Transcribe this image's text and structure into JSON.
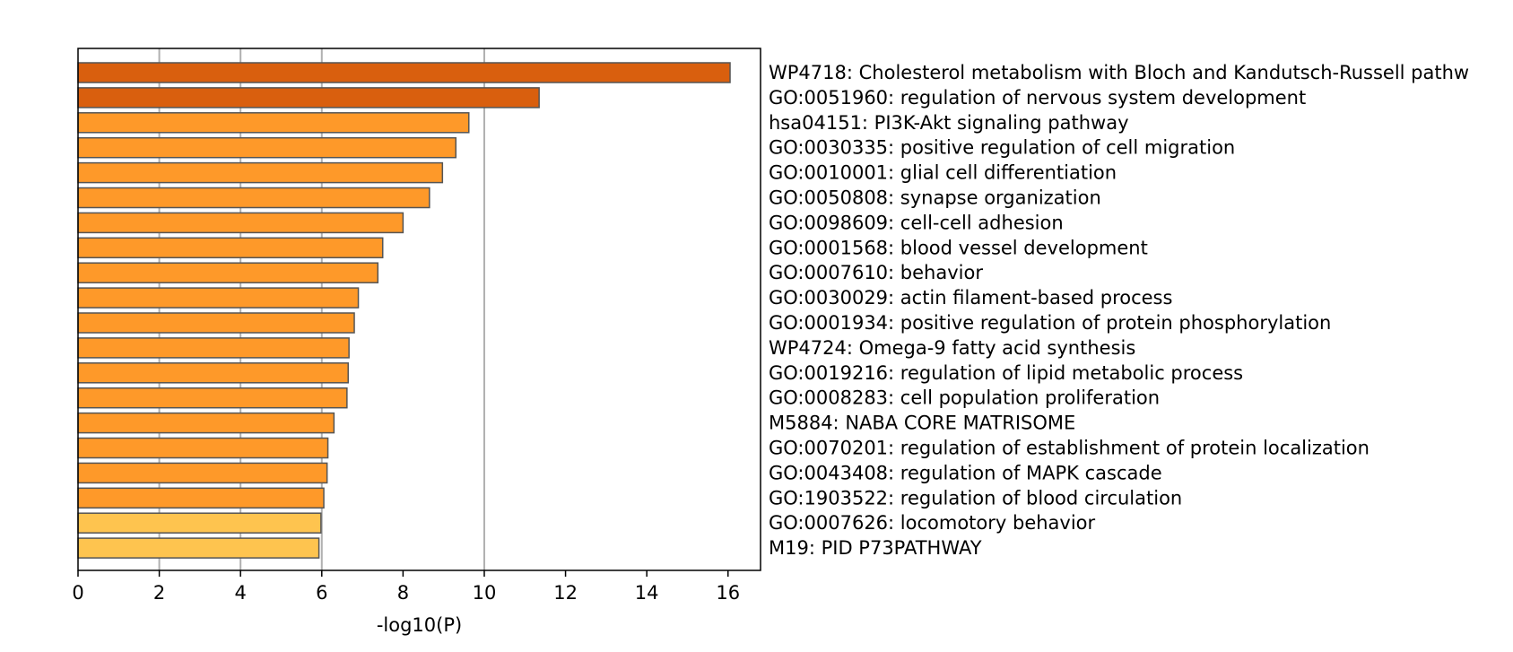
{
  "chart_data": {
    "type": "bar",
    "orientation": "horizontal",
    "xlabel": "-log10(P)",
    "xlim": [
      0,
      16.8
    ],
    "xticks": [
      0,
      2,
      4,
      6,
      8,
      10,
      12,
      14,
      16
    ],
    "vertical_gridlines_at": [
      2,
      4,
      6,
      10
    ],
    "categories": [
      "WP4718: Cholesterol metabolism with Bloch and Kandutsch-Russell pathw",
      "GO:0051960: regulation of nervous system development",
      "hsa04151: PI3K-Akt signaling pathway",
      "GO:0030335: positive regulation of cell migration",
      "GO:0010001: glial cell differentiation",
      "GO:0050808: synapse organization",
      "GO:0098609: cell-cell adhesion",
      "GO:0001568: blood vessel development",
      "GO:0007610: behavior",
      "GO:0030029: actin filament-based process",
      "GO:0001934: positive regulation of protein phosphorylation",
      "WP4724: Omega-9 fatty acid synthesis",
      "GO:0019216: regulation of lipid metabolic process",
      "GO:0008283: cell population proliferation",
      "M5884: NABA CORE MATRISOME",
      "GO:0070201: regulation of establishment of protein localization",
      "GO:0043408: regulation of MAPK cascade",
      "GO:1903522: regulation of blood circulation",
      "GO:0007626: locomotory behavior",
      "M19: PID P73PATHWAY"
    ],
    "values": [
      16.05,
      11.35,
      9.62,
      9.3,
      8.97,
      8.65,
      8.0,
      7.5,
      7.38,
      6.9,
      6.8,
      6.67,
      6.65,
      6.62,
      6.3,
      6.15,
      6.13,
      6.05,
      5.98,
      5.93
    ],
    "bar_colors": [
      "#d95f0e",
      "#d95f0e",
      "#fe9929",
      "#fe9929",
      "#fe9929",
      "#fe9929",
      "#fe9929",
      "#fe9929",
      "#fe9929",
      "#fe9929",
      "#fe9929",
      "#fe9929",
      "#fe9929",
      "#fe9929",
      "#fe9929",
      "#fe9929",
      "#fe9929",
      "#fe9929",
      "#fec44f",
      "#fec44f"
    ],
    "bar_edge_color": "#555555",
    "grid_color": "#b0b0b0"
  }
}
